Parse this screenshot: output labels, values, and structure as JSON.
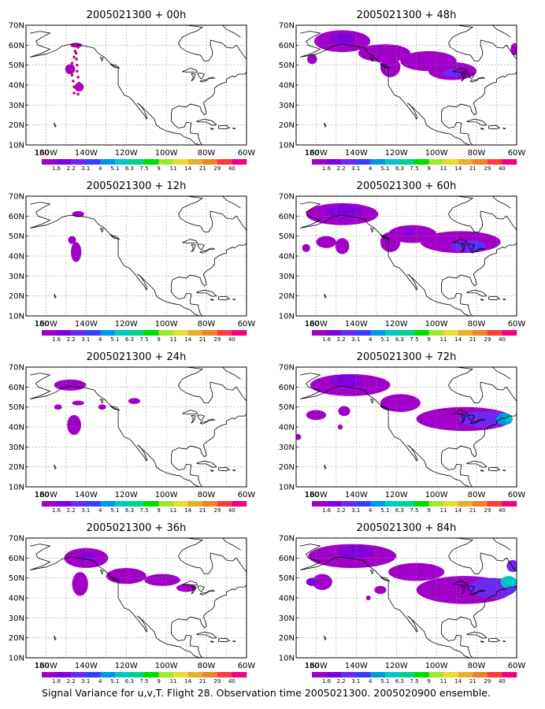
{
  "caption": "Signal Variance for u,v,T. Flight 28. Observation time 2005021300. 2005020900 ensemble.",
  "colorbar": {
    "labels": [
      "1.6",
      "2.2",
      "3.1",
      "4",
      "5.1",
      "6.3",
      "7.5",
      "9",
      "11",
      "14",
      "21",
      "29",
      "40"
    ],
    "colors": [
      "#a000c8",
      "#8200dc",
      "#6e28f0",
      "#3c3cff",
      "#0096e6",
      "#00c8c8",
      "#00d28c",
      "#00dc00",
      "#a0e632",
      "#e6dc32",
      "#e6af2d",
      "#f08228",
      "#fa3c3c",
      "#f00082"
    ]
  },
  "chart_data": [
    {
      "type": "heatmap",
      "title": "2005021300 + 00h",
      "xlabels": [
        "180",
        "160W",
        "140W",
        "120W",
        "100W",
        "80W",
        "60W"
      ],
      "ylabels": [
        "10N",
        "20N",
        "30N",
        "40N",
        "50N",
        "60N",
        "70N"
      ],
      "xlim": [
        -170,
        -60
      ],
      "ylim": [
        10,
        70
      ],
      "grid": true,
      "blobs": [
        {
          "lon": -145.0,
          "lat": 60.0,
          "rx": 3,
          "ry": 1.2,
          "level": 1
        },
        {
          "lon": -148.0,
          "lat": 48.0,
          "rx": 2.5,
          "ry": 2.5,
          "level": 1
        },
        {
          "lon": -143.5,
          "lat": 39.0,
          "rx": 2.3,
          "ry": 2.2,
          "level": 1
        }
      ],
      "dots": [
        {
          "lon": -145.5,
          "lat": 60.0
        },
        {
          "lon": -145.5,
          "lat": 57.0
        },
        {
          "lon": -146.0,
          "lat": 54.0
        },
        {
          "lon": -147.0,
          "lat": 51.0
        },
        {
          "lon": -147.5,
          "lat": 48.0
        },
        {
          "lon": -147.0,
          "lat": 45.0
        },
        {
          "lon": -146.5,
          "lat": 42.0
        },
        {
          "lon": -146.0,
          "lat": 39.0
        },
        {
          "lon": -146.0,
          "lat": 36.0
        },
        {
          "lon": -144.0,
          "lat": 35.5
        },
        {
          "lon": -143.0,
          "lat": 38.0
        },
        {
          "lon": -143.5,
          "lat": 41.0
        },
        {
          "lon": -144.0,
          "lat": 44.0
        },
        {
          "lon": -144.5,
          "lat": 47.0
        },
        {
          "lon": -144.5,
          "lat": 50.0
        },
        {
          "lon": -144.8,
          "lat": 53.0
        },
        {
          "lon": -145.0,
          "lat": 56.0
        },
        {
          "lon": -144.0,
          "lat": 59.0
        }
      ]
    },
    {
      "type": "heatmap",
      "title": "2005021300 + 48h",
      "xlabels": [
        "180",
        "160W",
        "140W",
        "120W",
        "100W",
        "80W",
        "60W"
      ],
      "ylabels": [
        "10N",
        "20N",
        "30N",
        "40N",
        "50N",
        "60N",
        "70N"
      ],
      "xlim": [
        -170,
        -60
      ],
      "ylim": [
        10,
        70
      ],
      "grid": true,
      "blobs": [
        {
          "lon": -147,
          "lat": 62,
          "rx": 14,
          "ry": 5.5,
          "level": 1
        },
        {
          "lon": -147,
          "lat": 63,
          "rx": 6,
          "ry": 3,
          "level": 2
        },
        {
          "lon": -162,
          "lat": 53,
          "rx": 2.5,
          "ry": 2.5,
          "level": 1
        },
        {
          "lon": -126,
          "lat": 56,
          "rx": 13,
          "ry": 4.5,
          "level": 1
        },
        {
          "lon": -123,
          "lat": 49,
          "rx": 5,
          "ry": 5,
          "level": 1
        },
        {
          "lon": -104,
          "lat": 52,
          "rx": 14,
          "ry": 5,
          "level": 1
        },
        {
          "lon": -92,
          "lat": 47,
          "rx": 12,
          "ry": 4.5,
          "level": 1
        },
        {
          "lon": -92,
          "lat": 46,
          "rx": 5,
          "ry": 2,
          "level": 3
        },
        {
          "lon": -61,
          "lat": 58,
          "rx": 2,
          "ry": 3,
          "level": 1
        }
      ],
      "dots": []
    },
    {
      "type": "heatmap",
      "title": "2005021300 + 12h",
      "xlabels": [
        "180",
        "160W",
        "140W",
        "120W",
        "100W",
        "80W",
        "60W"
      ],
      "ylabels": [
        "10N",
        "20N",
        "30N",
        "40N",
        "50N",
        "60N",
        "70N"
      ],
      "xlim": [
        -170,
        -60
      ],
      "ylim": [
        10,
        70
      ],
      "grid": true,
      "blobs": [
        {
          "lon": -144,
          "lat": 61,
          "rx": 3,
          "ry": 1.5,
          "level": 1
        },
        {
          "lon": -147,
          "lat": 48,
          "rx": 2,
          "ry": 2,
          "level": 1
        },
        {
          "lon": -145,
          "lat": 42,
          "rx": 2.6,
          "ry": 5,
          "level": 1
        }
      ],
      "dots": []
    },
    {
      "type": "heatmap",
      "title": "2005021300 + 60h",
      "xlabels": [
        "180",
        "160W",
        "140W",
        "120W",
        "100W",
        "80W",
        "60W"
      ],
      "ylabels": [
        "10N",
        "20N",
        "30N",
        "40N",
        "50N",
        "60N",
        "70N"
      ],
      "xlim": [
        -170,
        -60
      ],
      "ylim": [
        10,
        70
      ],
      "grid": true,
      "blobs": [
        {
          "lon": -147,
          "lat": 61,
          "rx": 18,
          "ry": 5.5,
          "level": 1
        },
        {
          "lon": -146,
          "lat": 62.5,
          "rx": 9,
          "ry": 3,
          "level": 2
        },
        {
          "lon": -155,
          "lat": 47,
          "rx": 5,
          "ry": 3,
          "level": 1
        },
        {
          "lon": -147,
          "lat": 45,
          "rx": 3.5,
          "ry": 4,
          "level": 1
        },
        {
          "lon": -165,
          "lat": 44,
          "rx": 2,
          "ry": 2,
          "level": 1
        },
        {
          "lon": -123,
          "lat": 47,
          "rx": 5,
          "ry": 5,
          "level": 1
        },
        {
          "lon": -112,
          "lat": 51,
          "rx": 12,
          "ry": 4.5,
          "level": 1
        },
        {
          "lon": -114,
          "lat": 52,
          "rx": 3,
          "ry": 2,
          "level": 2
        },
        {
          "lon": -88,
          "lat": 47,
          "rx": 20,
          "ry": 5.5,
          "level": 1
        },
        {
          "lon": -84,
          "lat": 45,
          "rx": 9,
          "ry": 3,
          "level": 3
        },
        {
          "lon": -80,
          "lat": 45,
          "rx": 3,
          "ry": 1.5,
          "level": 4
        }
      ],
      "dots": []
    },
    {
      "type": "heatmap",
      "title": "2005021300 + 24h",
      "xlabels": [
        "180",
        "160W",
        "140W",
        "120W",
        "100W",
        "80W",
        "60W"
      ],
      "ylabels": [
        "10N",
        "20N",
        "30N",
        "40N",
        "50N",
        "60N",
        "70N"
      ],
      "xlim": [
        -170,
        -60
      ],
      "ylim": [
        10,
        70
      ],
      "grid": true,
      "blobs": [
        {
          "lon": -148,
          "lat": 61,
          "rx": 8,
          "ry": 2.8,
          "level": 1
        },
        {
          "lon": -146,
          "lat": 41,
          "rx": 3.5,
          "ry": 5,
          "level": 1
        },
        {
          "lon": -144,
          "lat": 52,
          "rx": 3,
          "ry": 1.2,
          "level": 1
        },
        {
          "lon": -154,
          "lat": 50,
          "rx": 2,
          "ry": 1.3,
          "level": 1
        },
        {
          "lon": -132,
          "lat": 50,
          "rx": 2,
          "ry": 1.3,
          "level": 1
        },
        {
          "lon": -116,
          "lat": 53,
          "rx": 3,
          "ry": 1.5,
          "level": 1
        }
      ],
      "dots": []
    },
    {
      "type": "heatmap",
      "title": "2005021300 + 72h",
      "xlabels": [
        "180",
        "160W",
        "140W",
        "120W",
        "100W",
        "80W",
        "60W"
      ],
      "ylabels": [
        "10N",
        "20N",
        "30N",
        "40N",
        "50N",
        "60N",
        "70N"
      ],
      "xlim": [
        -170,
        -60
      ],
      "ylim": [
        10,
        70
      ],
      "grid": true,
      "blobs": [
        {
          "lon": -143,
          "lat": 61,
          "rx": 20,
          "ry": 5.5,
          "level": 1
        },
        {
          "lon": -145,
          "lat": 63,
          "rx": 8,
          "ry": 3,
          "level": 2
        },
        {
          "lon": -160,
          "lat": 46,
          "rx": 5,
          "ry": 2.5,
          "level": 1
        },
        {
          "lon": -146,
          "lat": 48,
          "rx": 3,
          "ry": 2.5,
          "level": 1
        },
        {
          "lon": -169,
          "lat": 35,
          "rx": 1.5,
          "ry": 1.5,
          "level": 1
        },
        {
          "lon": -148,
          "lat": 40,
          "rx": 1.2,
          "ry": 1.3,
          "level": 1
        },
        {
          "lon": -118,
          "lat": 52,
          "rx": 10,
          "ry": 4.5,
          "level": 1
        },
        {
          "lon": -86,
          "lat": 44,
          "rx": 24,
          "ry": 6,
          "level": 1
        },
        {
          "lon": -76,
          "lat": 44,
          "rx": 13,
          "ry": 4,
          "level": 3
        },
        {
          "lon": -66,
          "lat": 44,
          "rx": 4,
          "ry": 3,
          "level": 5
        },
        {
          "lon": -64,
          "lat": 44,
          "rx": 2,
          "ry": 1.5,
          "level": 6
        }
      ],
      "dots": []
    },
    {
      "type": "heatmap",
      "title": "2005021300 + 36h",
      "xlabels": [
        "180",
        "160W",
        "140W",
        "120W",
        "100W",
        "80W",
        "60W"
      ],
      "ylabels": [
        "10N",
        "20N",
        "30N",
        "40N",
        "50N",
        "60N",
        "70N"
      ],
      "xlim": [
        -170,
        -60
      ],
      "ylim": [
        10,
        70
      ],
      "grid": true,
      "blobs": [
        {
          "lon": -140,
          "lat": 60,
          "rx": 11,
          "ry": 5,
          "level": 1
        },
        {
          "lon": -139,
          "lat": 61,
          "rx": 4,
          "ry": 2,
          "level": 2
        },
        {
          "lon": -143,
          "lat": 47,
          "rx": 4,
          "ry": 6,
          "level": 1
        },
        {
          "lon": -120,
          "lat": 51,
          "rx": 10,
          "ry": 4,
          "level": 1
        },
        {
          "lon": -102,
          "lat": 49,
          "rx": 9,
          "ry": 3,
          "level": 1
        },
        {
          "lon": -90,
          "lat": 45,
          "rx": 5,
          "ry": 2,
          "level": 1
        }
      ],
      "dots": []
    },
    {
      "type": "heatmap",
      "title": "2005021300 + 84h",
      "xlabels": [
        "180",
        "160W",
        "140W",
        "120W",
        "100W",
        "80W",
        "60W"
      ],
      "ylabels": [
        "10N",
        "20N",
        "30N",
        "40N",
        "50N",
        "60N",
        "70N"
      ],
      "xlim": [
        -170,
        -60
      ],
      "ylim": [
        10,
        70
      ],
      "grid": true,
      "blobs": [
        {
          "lon": -142,
          "lat": 61,
          "rx": 22,
          "ry": 6,
          "level": 1
        },
        {
          "lon": -140,
          "lat": 63,
          "rx": 9,
          "ry": 3,
          "level": 2
        },
        {
          "lon": -157,
          "lat": 48,
          "rx": 5,
          "ry": 4,
          "level": 1
        },
        {
          "lon": -162,
          "lat": 48,
          "rx": 3,
          "ry": 2,
          "level": 2
        },
        {
          "lon": -110,
          "lat": 53,
          "rx": 14,
          "ry": 4.5,
          "level": 1
        },
        {
          "lon": -128,
          "lat": 44,
          "rx": 3,
          "ry": 2,
          "level": 1
        },
        {
          "lon": -134,
          "lat": 40,
          "rx": 1.2,
          "ry": 1.2,
          "level": 1
        },
        {
          "lon": -86,
          "lat": 44,
          "rx": 24,
          "ry": 7,
          "level": 1
        },
        {
          "lon": -72,
          "lat": 45,
          "rx": 12,
          "ry": 5,
          "level": 3
        },
        {
          "lon": -64,
          "lat": 48,
          "rx": 4,
          "ry": 3,
          "level": 6
        },
        {
          "lon": -62,
          "lat": 56,
          "rx": 3,
          "ry": 3,
          "level": 3
        }
      ],
      "dots": []
    }
  ]
}
